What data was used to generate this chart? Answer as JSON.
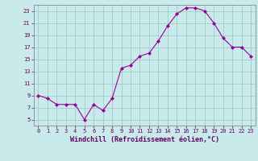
{
  "x": [
    0,
    1,
    2,
    3,
    4,
    5,
    6,
    7,
    8,
    9,
    10,
    11,
    12,
    13,
    14,
    15,
    16,
    17,
    18,
    19,
    20,
    21,
    22,
    23
  ],
  "y": [
    9,
    8.5,
    7.5,
    7.5,
    7.5,
    5,
    7.5,
    6.5,
    8.5,
    13.5,
    14,
    15.5,
    16,
    18,
    20.5,
    22.5,
    23.5,
    23.5,
    23,
    21,
    18.5,
    17,
    17,
    15.5
  ],
  "line_color": "#990099",
  "marker_color": "#990099",
  "bg_color": "#c8eaea",
  "grid_color": "#a0cccc",
  "xlabel": "Windchill (Refroidissement éolien,°C)",
  "xlabel_color": "#660066",
  "tick_color": "#660066",
  "ylim": [
    4,
    24
  ],
  "xlim": [
    -0.5,
    23.5
  ],
  "yticks": [
    5,
    7,
    9,
    11,
    13,
    15,
    17,
    19,
    21,
    23
  ],
  "xticks": [
    0,
    1,
    2,
    3,
    4,
    5,
    6,
    7,
    8,
    9,
    10,
    11,
    12,
    13,
    14,
    15,
    16,
    17,
    18,
    19,
    20,
    21,
    22,
    23
  ]
}
